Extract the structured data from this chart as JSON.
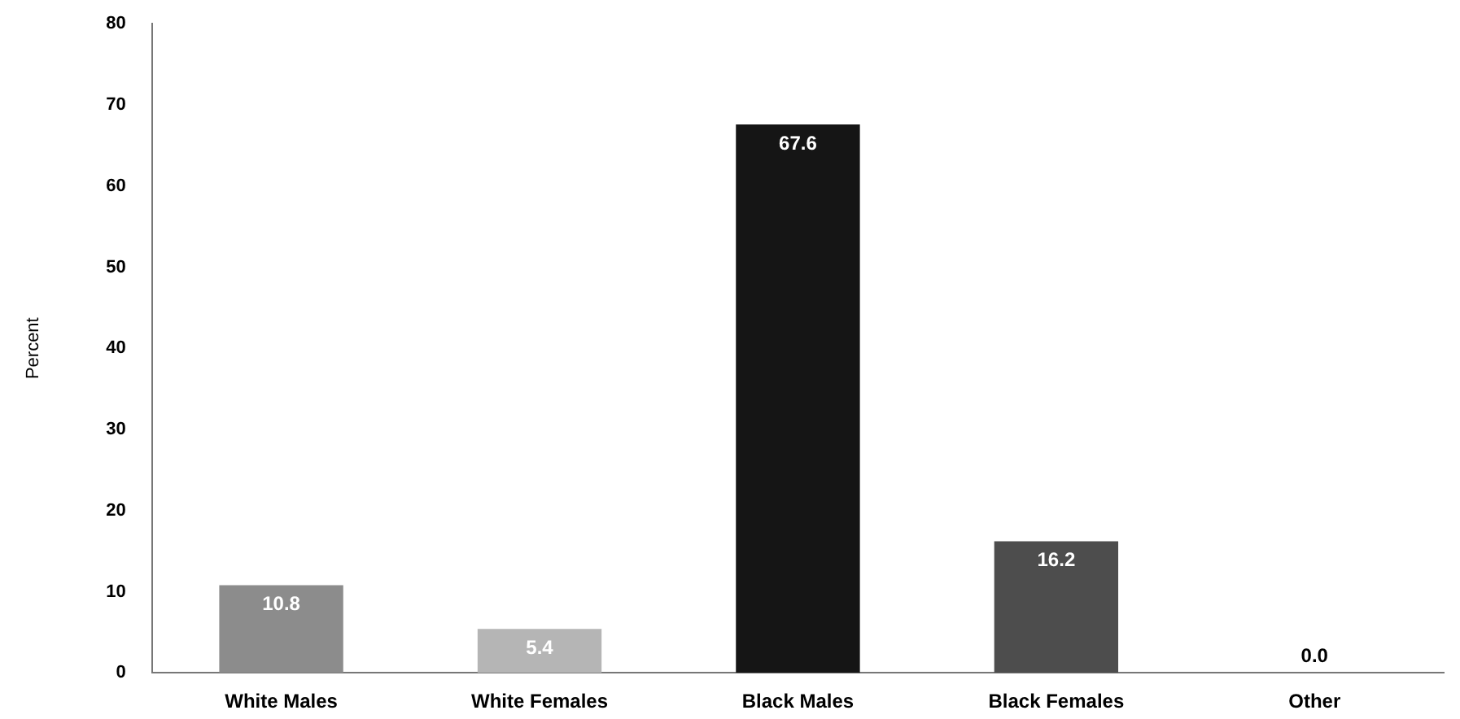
{
  "chart_data": {
    "type": "bar",
    "ylabel": "Percent",
    "categories": [
      "White Males",
      "White Females",
      "Black Males",
      "Black Females",
      "Other"
    ],
    "values": [
      10.8,
      5.4,
      67.6,
      16.2,
      0.0
    ],
    "colors": [
      "#8c8c8c",
      "#b5b5b5",
      "#151515",
      "#4d4d4d",
      "#cccccc"
    ],
    "value_labels": [
      "10.8",
      "5.4",
      "67.6",
      "16.2",
      "0.0"
    ],
    "ylim": [
      0,
      80
    ],
    "yticks": [
      0,
      10,
      20,
      30,
      40,
      50,
      60,
      70,
      80
    ],
    "grid": false,
    "legend": false
  }
}
